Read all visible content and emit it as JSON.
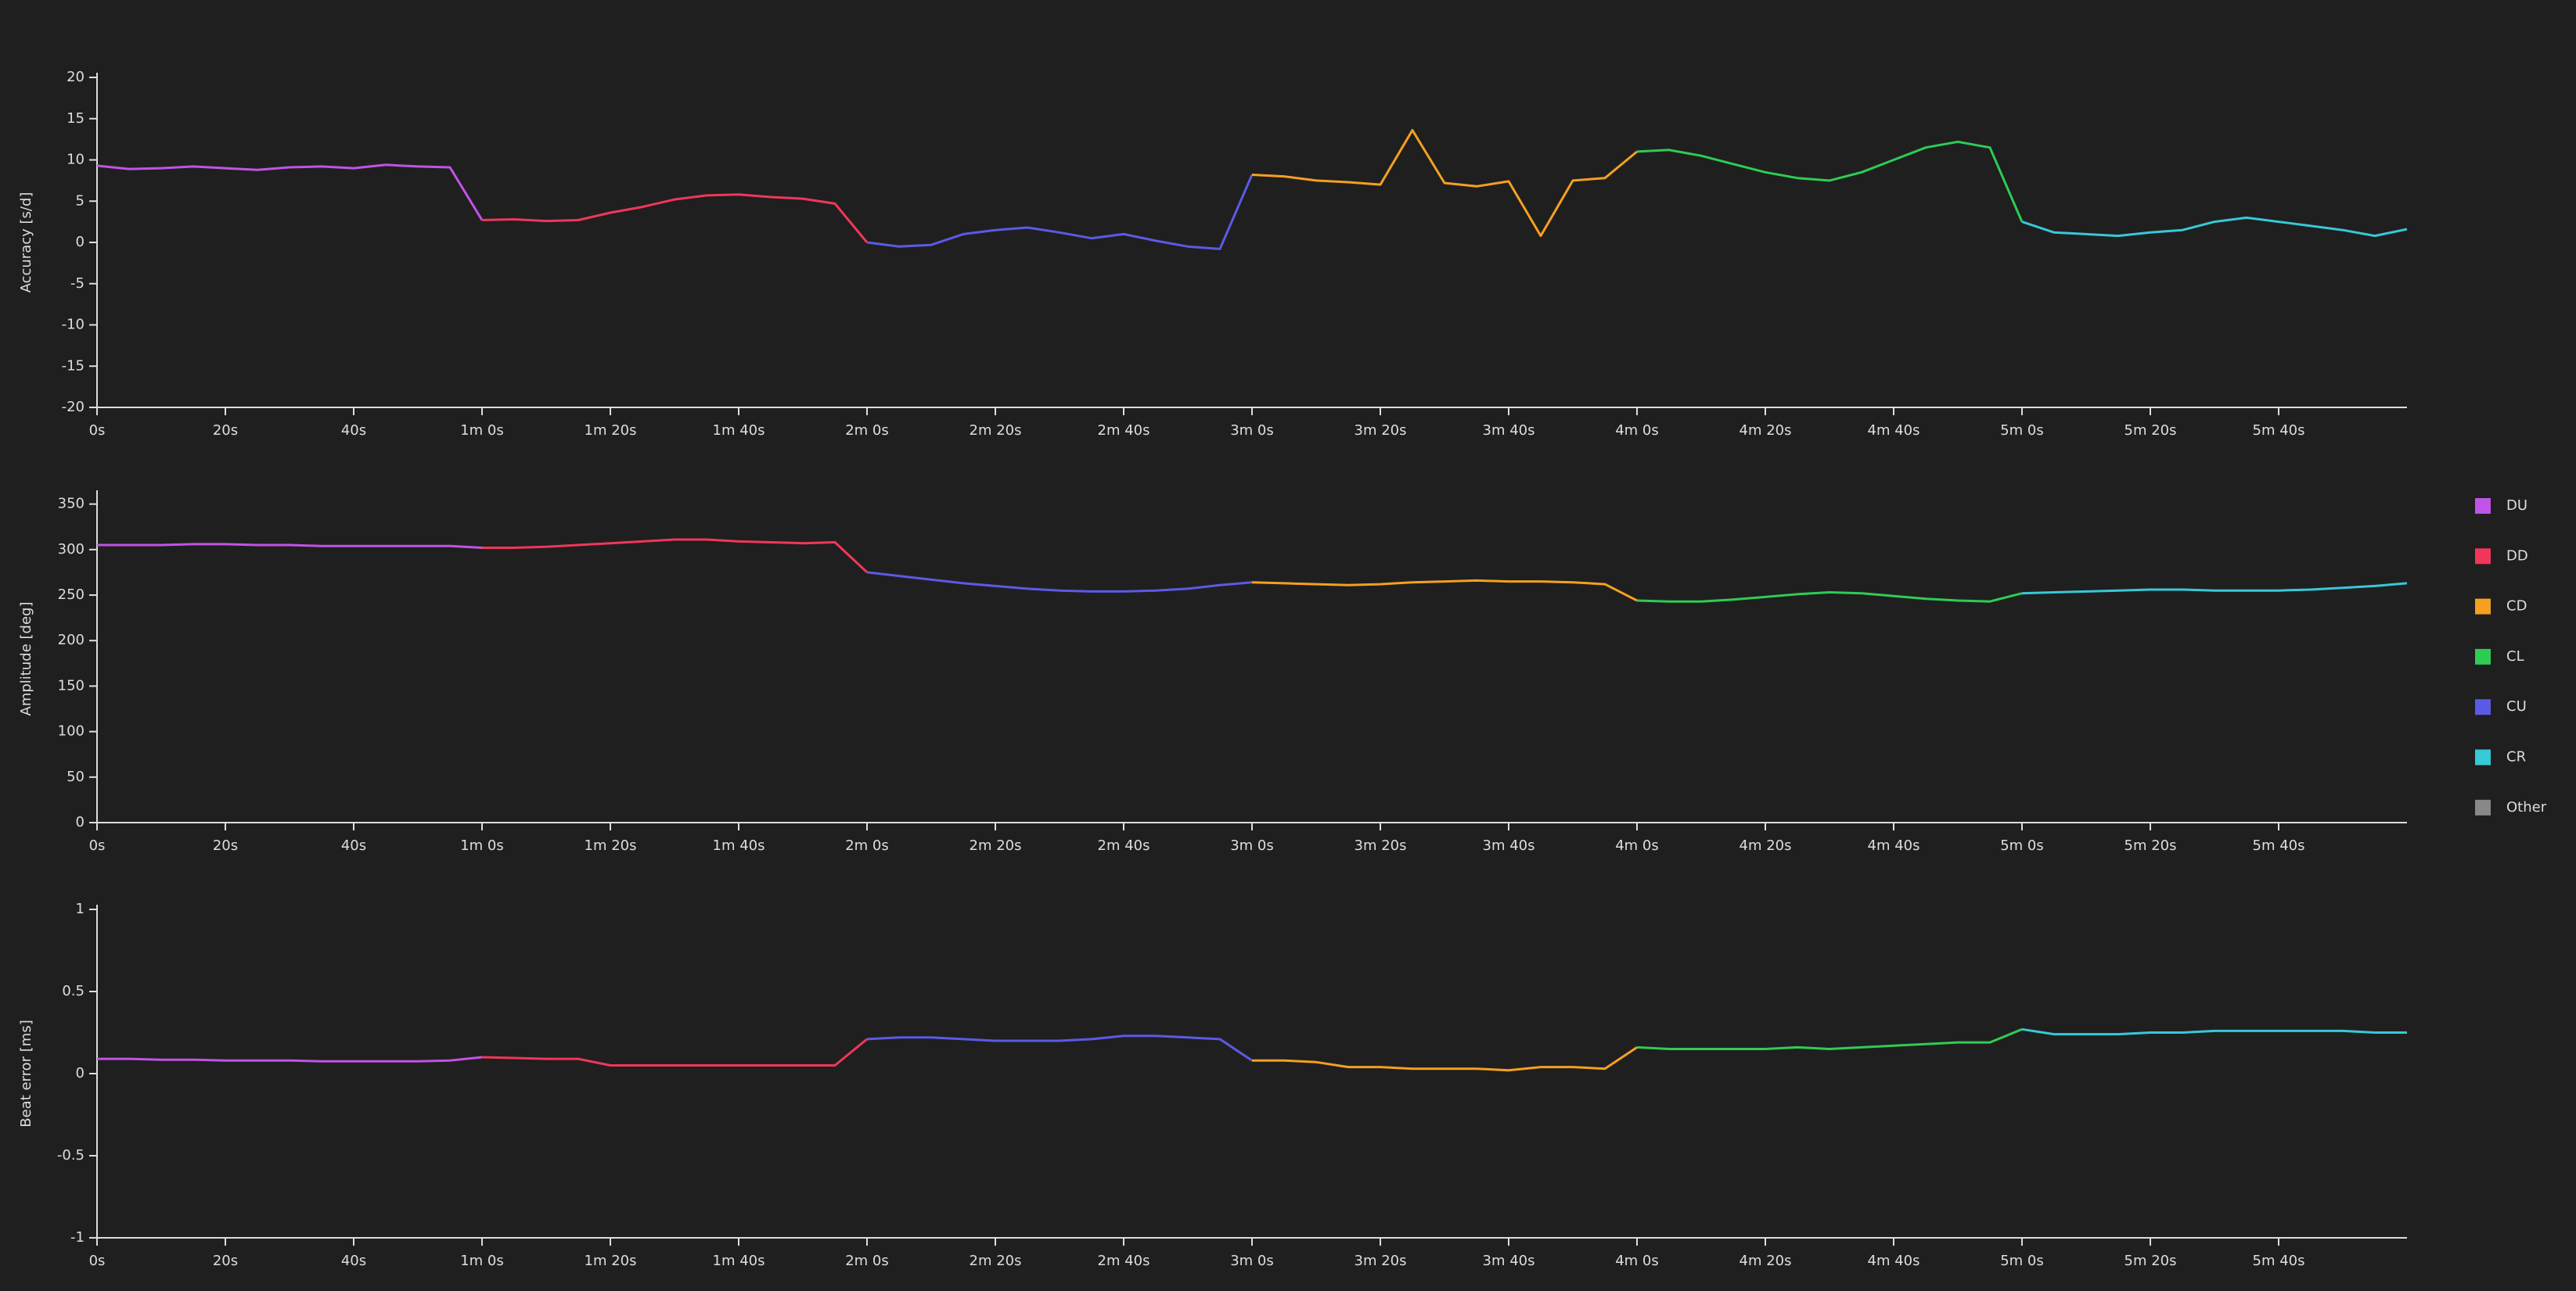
{
  "chart_data": [
    {
      "type": "line",
      "ylabel": "Accuracy [s/d]",
      "xlim": [
        0,
        360
      ],
      "ylim": [
        -20,
        20
      ],
      "yticks": [
        -20,
        -15,
        -10,
        -5,
        0,
        5,
        10,
        15,
        20
      ],
      "xticks": [
        {
          "value": 0,
          "label": "0s"
        },
        {
          "value": 20,
          "label": "20s"
        },
        {
          "value": 40,
          "label": "40s"
        },
        {
          "value": 60,
          "label": "1m 0s"
        },
        {
          "value": 80,
          "label": "1m 20s"
        },
        {
          "value": 100,
          "label": "1m 40s"
        },
        {
          "value": 120,
          "label": "2m 0s"
        },
        {
          "value": 140,
          "label": "2m 20s"
        },
        {
          "value": 160,
          "label": "2m 40s"
        },
        {
          "value": 180,
          "label": "3m 0s"
        },
        {
          "value": 200,
          "label": "3m 20s"
        },
        {
          "value": 220,
          "label": "3m 40s"
        },
        {
          "value": 240,
          "label": "4m 0s"
        },
        {
          "value": 260,
          "label": "4m 20s"
        },
        {
          "value": 280,
          "label": "4m 40s"
        },
        {
          "value": 300,
          "label": "5m 0s"
        },
        {
          "value": 320,
          "label": "5m 20s"
        },
        {
          "value": 340,
          "label": "5m 40s"
        }
      ],
      "series": [
        {
          "name": "DU",
          "color": "#c054e6",
          "x": [
            0,
            5,
            10,
            15,
            20,
            25,
            30,
            35,
            40,
            45,
            50,
            55,
            60
          ],
          "values": [
            9.3,
            8.9,
            9.0,
            9.2,
            9.0,
            8.8,
            9.1,
            9.2,
            9.0,
            9.4,
            9.2,
            9.1,
            2.7
          ]
        },
        {
          "name": "DD",
          "color": "#f0375a",
          "x": [
            60,
            65,
            70,
            75,
            80,
            85,
            90,
            95,
            100,
            105,
            110,
            115,
            120
          ],
          "values": [
            2.7,
            2.8,
            2.6,
            2.7,
            3.6,
            4.3,
            5.2,
            5.7,
            5.8,
            5.5,
            5.3,
            4.7,
            0.0
          ]
        },
        {
          "name": "CU",
          "color": "#5a5ae6",
          "x": [
            120,
            125,
            130,
            135,
            140,
            145,
            150,
            155,
            160,
            165,
            170,
            175,
            180
          ],
          "values": [
            0.0,
            -0.5,
            -0.3,
            1.0,
            1.5,
            1.8,
            1.2,
            0.5,
            1.0,
            0.2,
            -0.5,
            -0.8,
            8.2
          ]
        },
        {
          "name": "CD",
          "color": "#f5a020",
          "x": [
            180,
            185,
            190,
            195,
            200,
            205,
            210,
            215,
            220,
            225,
            230,
            235,
            240
          ],
          "values": [
            8.2,
            8.0,
            7.5,
            7.3,
            7.0,
            13.6,
            7.2,
            6.8,
            7.4,
            0.8,
            7.5,
            7.8,
            11.0
          ]
        },
        {
          "name": "CL",
          "color": "#2ecc55",
          "x": [
            240,
            245,
            250,
            255,
            260,
            265,
            270,
            275,
            280,
            285,
            290,
            295,
            300
          ],
          "values": [
            11.0,
            11.2,
            10.5,
            9.5,
            8.5,
            7.8,
            7.5,
            8.5,
            10.0,
            11.5,
            12.2,
            11.5,
            2.5
          ]
        },
        {
          "name": "CR",
          "color": "#38c8d8",
          "x": [
            300,
            305,
            310,
            315,
            320,
            325,
            330,
            335,
            340,
            345,
            350,
            355,
            360
          ],
          "values": [
            2.5,
            1.2,
            1.0,
            0.8,
            1.2,
            1.5,
            2.5,
            3.0,
            2.5,
            2.0,
            1.5,
            0.8,
            1.6
          ]
        }
      ]
    },
    {
      "type": "line",
      "ylabel": "Amplitude [deg]",
      "xlim": [
        0,
        360
      ],
      "ylim": [
        0,
        360
      ],
      "yticks": [
        0,
        50,
        100,
        150,
        200,
        250,
        300,
        350
      ],
      "xticks": [
        {
          "value": 0,
          "label": "0s"
        },
        {
          "value": 20,
          "label": "20s"
        },
        {
          "value": 40,
          "label": "40s"
        },
        {
          "value": 60,
          "label": "1m 0s"
        },
        {
          "value": 80,
          "label": "1m 20s"
        },
        {
          "value": 100,
          "label": "1m 40s"
        },
        {
          "value": 120,
          "label": "2m 0s"
        },
        {
          "value": 140,
          "label": "2m 20s"
        },
        {
          "value": 160,
          "label": "2m 40s"
        },
        {
          "value": 180,
          "label": "3m 0s"
        },
        {
          "value": 200,
          "label": "3m 20s"
        },
        {
          "value": 220,
          "label": "3m 40s"
        },
        {
          "value": 240,
          "label": "4m 0s"
        },
        {
          "value": 260,
          "label": "4m 20s"
        },
        {
          "value": 280,
          "label": "4m 40s"
        },
        {
          "value": 300,
          "label": "5m 0s"
        },
        {
          "value": 320,
          "label": "5m 20s"
        },
        {
          "value": 340,
          "label": "5m 40s"
        }
      ],
      "series": [
        {
          "name": "DU",
          "color": "#c054e6",
          "x": [
            0,
            5,
            10,
            15,
            20,
            25,
            30,
            35,
            40,
            45,
            50,
            55,
            60
          ],
          "values": [
            305,
            305,
            305,
            306,
            306,
            305,
            305,
            304,
            304,
            304,
            304,
            304,
            302
          ]
        },
        {
          "name": "DD",
          "color": "#f0375a",
          "x": [
            60,
            65,
            70,
            75,
            80,
            85,
            90,
            95,
            100,
            105,
            110,
            115,
            120
          ],
          "values": [
            302,
            302,
            303,
            305,
            307,
            309,
            311,
            311,
            309,
            308,
            307,
            308,
            275
          ]
        },
        {
          "name": "CU",
          "color": "#5a5ae6",
          "x": [
            120,
            125,
            130,
            135,
            140,
            145,
            150,
            155,
            160,
            165,
            170,
            175,
            180
          ],
          "values": [
            275,
            271,
            267,
            263,
            260,
            257,
            255,
            254,
            254,
            255,
            257,
            261,
            264
          ]
        },
        {
          "name": "CD",
          "color": "#f5a020",
          "x": [
            180,
            185,
            190,
            195,
            200,
            205,
            210,
            215,
            220,
            225,
            230,
            235,
            240
          ],
          "values": [
            264,
            263,
            262,
            261,
            262,
            264,
            265,
            266,
            265,
            265,
            264,
            262,
            244
          ]
        },
        {
          "name": "CL",
          "color": "#2ecc55",
          "x": [
            240,
            245,
            250,
            255,
            260,
            265,
            270,
            275,
            280,
            285,
            290,
            295,
            300
          ],
          "values": [
            244,
            243,
            243,
            245,
            248,
            251,
            253,
            252,
            249,
            246,
            244,
            243,
            252
          ]
        },
        {
          "name": "CR",
          "color": "#38c8d8",
          "x": [
            300,
            305,
            310,
            315,
            320,
            325,
            330,
            335,
            340,
            345,
            350,
            355,
            360
          ],
          "values": [
            252,
            253,
            254,
            255,
            256,
            256,
            255,
            255,
            255,
            256,
            258,
            260,
            263
          ]
        }
      ]
    },
    {
      "type": "line",
      "ylabel": "Beat error [ms]",
      "xlim": [
        0,
        360
      ],
      "ylim": [
        -1,
        1
      ],
      "yticks": [
        -1,
        -0.5,
        0,
        0.5,
        1
      ],
      "xticks": [
        {
          "value": 0,
          "label": "0s"
        },
        {
          "value": 20,
          "label": "20s"
        },
        {
          "value": 40,
          "label": "40s"
        },
        {
          "value": 60,
          "label": "1m 0s"
        },
        {
          "value": 80,
          "label": "1m 20s"
        },
        {
          "value": 100,
          "label": "1m 40s"
        },
        {
          "value": 120,
          "label": "2m 0s"
        },
        {
          "value": 140,
          "label": "2m 20s"
        },
        {
          "value": 160,
          "label": "2m 40s"
        },
        {
          "value": 180,
          "label": "3m 0s"
        },
        {
          "value": 200,
          "label": "3m 20s"
        },
        {
          "value": 220,
          "label": "3m 40s"
        },
        {
          "value": 240,
          "label": "4m 0s"
        },
        {
          "value": 260,
          "label": "4m 20s"
        },
        {
          "value": 280,
          "label": "4m 40s"
        },
        {
          "value": 300,
          "label": "5m 0s"
        },
        {
          "value": 320,
          "label": "5m 20s"
        },
        {
          "value": 340,
          "label": "5m 40s"
        }
      ],
      "series": [
        {
          "name": "DU",
          "color": "#c054e6",
          "x": [
            0,
            5,
            10,
            15,
            20,
            25,
            30,
            35,
            40,
            45,
            50,
            55,
            60
          ],
          "values": [
            0.09,
            0.09,
            0.085,
            0.085,
            0.08,
            0.08,
            0.08,
            0.075,
            0.075,
            0.075,
            0.075,
            0.08,
            0.1
          ]
        },
        {
          "name": "DD",
          "color": "#f0375a",
          "x": [
            60,
            65,
            70,
            75,
            80,
            85,
            90,
            95,
            100,
            105,
            110,
            115,
            120
          ],
          "values": [
            0.1,
            0.095,
            0.09,
            0.09,
            0.05,
            0.05,
            0.05,
            0.05,
            0.05,
            0.05,
            0.05,
            0.05,
            0.21
          ]
        },
        {
          "name": "CU",
          "color": "#5a5ae6",
          "x": [
            120,
            125,
            130,
            135,
            140,
            145,
            150,
            155,
            160,
            165,
            170,
            175,
            180
          ],
          "values": [
            0.21,
            0.22,
            0.22,
            0.21,
            0.2,
            0.2,
            0.2,
            0.21,
            0.23,
            0.23,
            0.22,
            0.21,
            0.08
          ]
        },
        {
          "name": "CD",
          "color": "#f5a020",
          "x": [
            180,
            185,
            190,
            195,
            200,
            205,
            210,
            215,
            220,
            225,
            230,
            235,
            240
          ],
          "values": [
            0.08,
            0.08,
            0.07,
            0.04,
            0.04,
            0.03,
            0.03,
            0.03,
            0.02,
            0.04,
            0.04,
            0.03,
            0.16
          ]
        },
        {
          "name": "CL",
          "color": "#2ecc55",
          "x": [
            240,
            245,
            250,
            255,
            260,
            265,
            270,
            275,
            280,
            285,
            290,
            295,
            300
          ],
          "values": [
            0.16,
            0.15,
            0.15,
            0.15,
            0.15,
            0.16,
            0.15,
            0.16,
            0.17,
            0.18,
            0.19,
            0.19,
            0.27
          ]
        },
        {
          "name": "CR",
          "color": "#38c8d8",
          "x": [
            300,
            305,
            310,
            315,
            320,
            325,
            330,
            335,
            340,
            345,
            350,
            355,
            360
          ],
          "values": [
            0.27,
            0.24,
            0.24,
            0.24,
            0.25,
            0.25,
            0.26,
            0.26,
            0.26,
            0.26,
            0.26,
            0.25,
            0.25
          ]
        }
      ]
    }
  ],
  "legend": [
    {
      "name": "DU",
      "color": "#c054e6"
    },
    {
      "name": "DD",
      "color": "#f0375a"
    },
    {
      "name": "CD",
      "color": "#f5a020"
    },
    {
      "name": "CL",
      "color": "#2ecc55"
    },
    {
      "name": "CU",
      "color": "#5a5ae6"
    },
    {
      "name": "CR",
      "color": "#38c8d8"
    },
    {
      "name": "Other",
      "color": "#888888"
    }
  ]
}
